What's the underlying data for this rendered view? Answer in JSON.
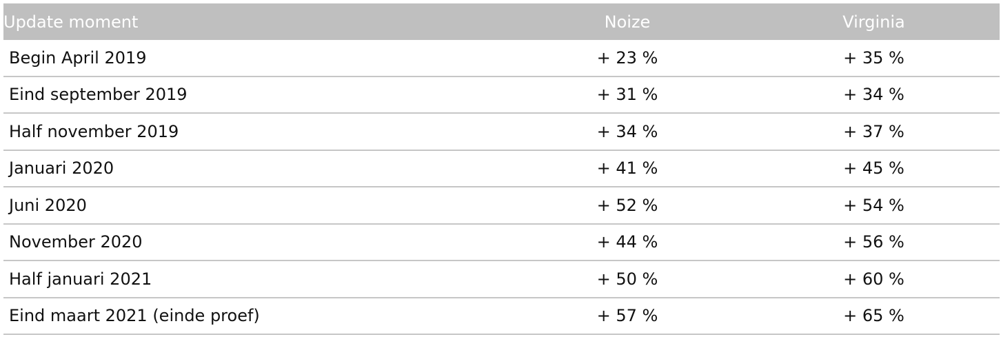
{
  "table": {
    "headers": {
      "moment": "Update moment",
      "noize": "Noize",
      "virginia": "Virginia"
    },
    "rows": [
      {
        "moment": "Begin April 2019",
        "noize": "+ 23 %",
        "virginia": "+ 35 %"
      },
      {
        "moment": "Eind september 2019",
        "noize": "+ 31 %",
        "virginia": "+ 34 %"
      },
      {
        "moment": "Half november 2019",
        "noize": "+ 34 %",
        "virginia": "+ 37 %"
      },
      {
        "moment": "Januari 2020",
        "noize": "+ 41 %",
        "virginia": "+ 45 %"
      },
      {
        "moment": "Juni 2020",
        "noize": "+ 52 %",
        "virginia": "+ 54 %"
      },
      {
        "moment": "November 2020",
        "noize": "+ 44 %",
        "virginia": "+ 56 %"
      },
      {
        "moment": "Half januari 2021",
        "noize": "+ 50 %",
        "virginia": "+ 60 %"
      },
      {
        "moment": "Eind maart 2021 (einde proef)",
        "noize": "+ 57 %",
        "virginia": "+ 65 %"
      }
    ]
  },
  "colors": {
    "header_bg": "#bfbfbf",
    "header_text": "#ffffff",
    "row_border": "#c6c6c6",
    "body_text": "#111111"
  }
}
